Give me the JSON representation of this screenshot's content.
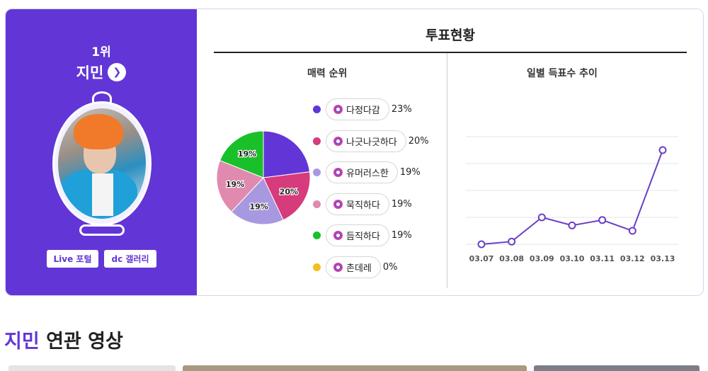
{
  "profile": {
    "rank": "1위",
    "name": "지민",
    "links": [
      "Live 포털",
      "dc 갤러리"
    ]
  },
  "vote": {
    "title": "투표현황",
    "charm_title": "매력 순위",
    "trend_title": "일별 득표수 추이",
    "legend": [
      {
        "label": "다정다감",
        "pct": "23%",
        "color": "#6236d6"
      },
      {
        "label": "나긋나긋하다",
        "pct": "20%",
        "color": "#d63b7c"
      },
      {
        "label": "유머러스한",
        "pct": "19%",
        "color": "#a898e0"
      },
      {
        "label": "묵직하다",
        "pct": "19%",
        "color": "#e08ab0"
      },
      {
        "label": "듬직하다",
        "pct": "19%",
        "color": "#19c02a"
      },
      {
        "label": "촌데레",
        "pct": "0%",
        "color": "#f5be1e"
      }
    ]
  },
  "chart_data": [
    {
      "type": "pie",
      "title": "매력 순위",
      "categories": [
        "다정다감",
        "나긋나긋하다",
        "유머러스한",
        "묵직하다",
        "듬직하다",
        "촌데레"
      ],
      "values": [
        23,
        20,
        19,
        19,
        19,
        0
      ],
      "slice_labels": [
        "",
        "20%",
        "19%",
        "19%",
        "19%",
        ""
      ],
      "colors": [
        "#6236d6",
        "#d63b7c",
        "#a898e0",
        "#e08ab0",
        "#19c02a",
        "#f5be1e"
      ]
    },
    {
      "type": "line",
      "title": "일별 득표수 추이",
      "x": [
        "03.07",
        "03.08",
        "03.09",
        "03.10",
        "03.11",
        "03.12",
        "03.13"
      ],
      "y": [
        0,
        1,
        10,
        7,
        9,
        5,
        35
      ],
      "ylim": [
        0,
        40
      ],
      "grid": true,
      "color": "#6a3fc8"
    }
  ],
  "section": {
    "title_highlight": "지민",
    "title_rest": " 연관 영상"
  }
}
